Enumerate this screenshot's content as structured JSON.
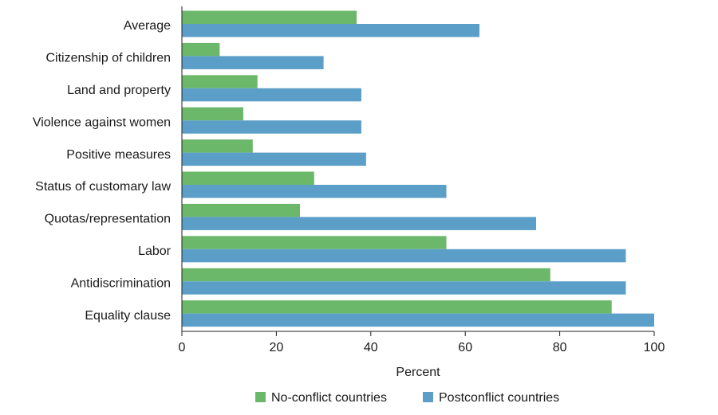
{
  "chart_data": {
    "type": "bar",
    "orientation": "horizontal",
    "categories": [
      "Average",
      "Citizenship of children",
      "Land and property",
      "Violence against women",
      "Positive measures",
      "Status of customary law",
      "Quotas/representation",
      "Labor",
      "Antidiscrimination",
      "Equality clause"
    ],
    "series": [
      {
        "name": "No-conflict countries",
        "color": "#6cb86a",
        "values": [
          37,
          8,
          16,
          13,
          15,
          28,
          25,
          56,
          78,
          91
        ]
      },
      {
        "name": "Postconflict countries",
        "color": "#5b9fc8",
        "values": [
          63,
          30,
          38,
          38,
          39,
          56,
          75,
          94,
          94,
          100
        ]
      }
    ],
    "xlabel": "Percent",
    "ylabel": "",
    "xlim": [
      0,
      100
    ],
    "xticks": [
      0,
      20,
      40,
      60,
      80,
      100
    ],
    "grid": false,
    "legend_position": "bottom"
  }
}
